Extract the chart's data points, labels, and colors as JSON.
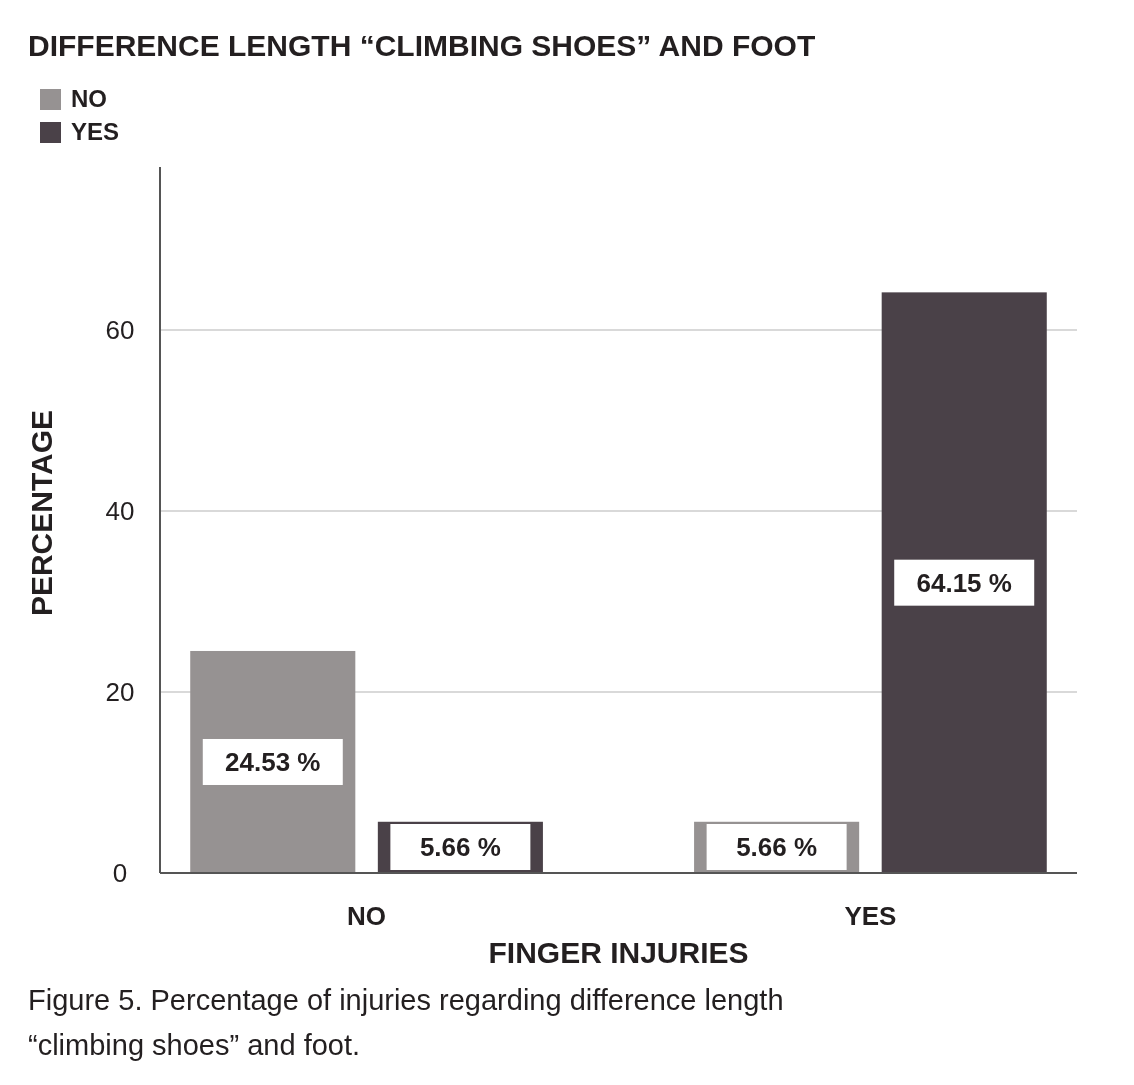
{
  "chart_data": {
    "type": "bar",
    "title": "DIFFERENCE LENGTH “CLIMBING SHOES” AND FOOT",
    "xlabel": "FINGER INJURIES",
    "ylabel": "PERCENTAGE",
    "categories": [
      "NO",
      "YES"
    ],
    "series": [
      {
        "name": "NO",
        "color": "#969292",
        "values": [
          24.53,
          5.66
        ],
        "value_labels": [
          "24.53 %",
          "5.66 %"
        ]
      },
      {
        "name": "YES",
        "color": "#4a4148",
        "values": [
          5.66,
          64.15
        ],
        "value_labels": [
          "5.66 %",
          "64.15 %"
        ]
      }
    ],
    "ylim": [
      0,
      78
    ],
    "yticks": [
      0,
      20,
      40,
      60
    ],
    "grid": "y",
    "legend": "top left",
    "annotations": [
      "Figure 5. Percentage of injuries regarding difference length “climbing shoes” and foot."
    ]
  }
}
